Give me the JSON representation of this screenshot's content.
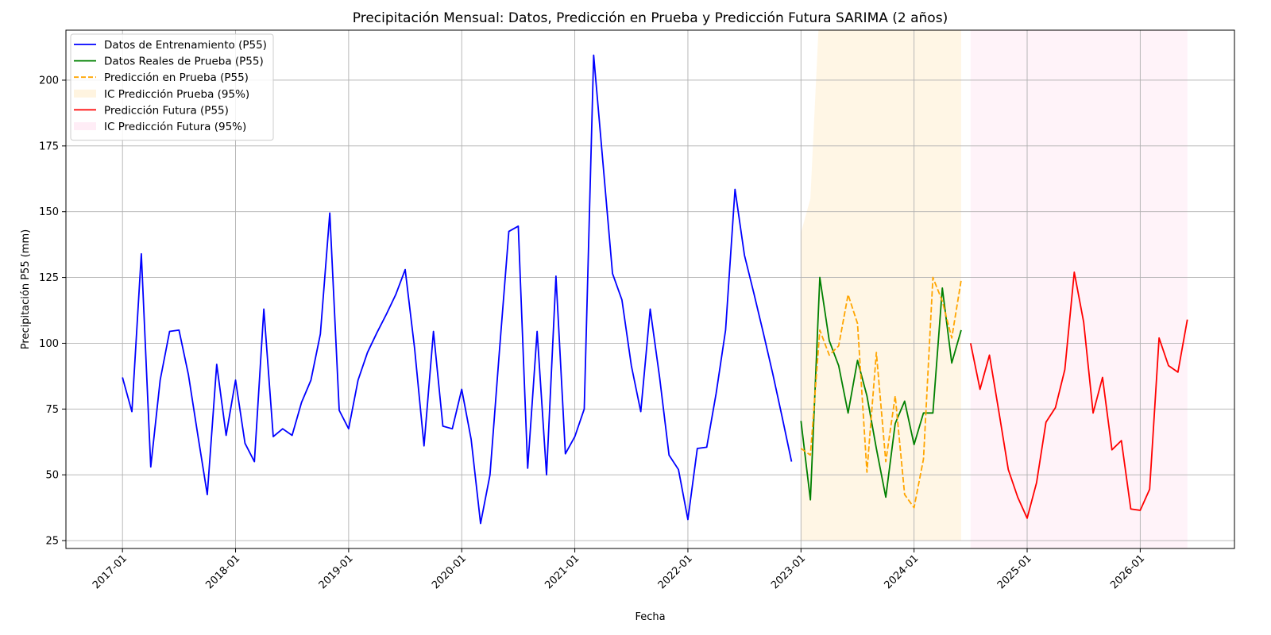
{
  "chart_data": {
    "type": "line",
    "title": "Precipitación Mensual: Datos, Predicción en Prueba y Predicción Futura SARIMA (2 años)",
    "xlabel": "Fecha",
    "ylabel": "Precipitación P55 (mm)",
    "xlim": [
      "2016-07",
      "2026-11"
    ],
    "ylim": [
      22,
      219
    ],
    "x_ticks": [
      "2017-01",
      "2018-01",
      "2019-01",
      "2020-01",
      "2021-01",
      "2022-01",
      "2023-01",
      "2024-01",
      "2025-01",
      "2026-01"
    ],
    "y_ticks": [
      25,
      50,
      75,
      100,
      125,
      150,
      175,
      200
    ],
    "grid": true,
    "legend_position": "upper-left",
    "series": [
      {
        "name": "Datos de Entrenamiento (P55)",
        "color": "#0000ff",
        "style": "solid",
        "start": "2017-01",
        "values": [
          87,
          74,
          134,
          53,
          86,
          104.5,
          105,
          88,
          65,
          42.5,
          92,
          65,
          86,
          62,
          55,
          113,
          64.5,
          67.5,
          65,
          77.5,
          86,
          103.5,
          149.5,
          74.5,
          67.5,
          86,
          96.5,
          104,
          111,
          118.5,
          128,
          98,
          61,
          104.5,
          68.5,
          67.5,
          82.5,
          63.5,
          31.5,
          50,
          97,
          142.5,
          144.5,
          52.5,
          104.5,
          50,
          125.5,
          58,
          64.5,
          75,
          209.5,
          168,
          126.5,
          116.5,
          91.5,
          74,
          113,
          87,
          57.5,
          52,
          33,
          60,
          60.5,
          81,
          105,
          158.5,
          133.5,
          119,
          104,
          88.5,
          72,
          55
        ]
      },
      {
        "name": "Datos Reales de Prueba (P55)",
        "color": "#008000",
        "style": "solid",
        "start": "2023-01",
        "values": [
          70.5,
          40.5,
          125,
          101,
          91.5,
          73.5,
          93.5,
          80,
          60,
          41.5,
          69.5,
          78,
          61.5,
          73.5,
          73.5,
          121,
          92.5,
          105
        ]
      },
      {
        "name": "Predicción en Prueba (P55)",
        "color": "#ffa500",
        "style": "dashed",
        "start": "2023-01",
        "values": [
          60,
          57.5,
          105,
          95.5,
          99,
          118.5,
          107.5,
          51,
          96.5,
          55,
          80,
          42.5,
          37.5,
          56,
          125,
          116,
          102,
          124
        ]
      },
      {
        "name": "IC Predicción Prueba (95%)",
        "type": "band",
        "color": "#ffa500",
        "opacity": 0.1,
        "start": "2023-01",
        "lower": [
          25,
          25,
          25,
          25,
          25,
          25,
          25,
          25,
          25,
          25,
          25,
          25,
          25,
          25,
          25,
          25,
          25,
          25
        ],
        "upper": [
          142,
          155,
          230,
          230,
          230,
          230,
          230,
          230,
          230,
          230,
          230,
          230,
          230,
          230,
          230,
          230,
          230,
          230
        ]
      },
      {
        "name": "Predicción Futura (P55)",
        "color": "#ff0000",
        "style": "solid",
        "start": "2024-07",
        "values": [
          100,
          82.5,
          95.5,
          74,
          52,
          41.5,
          33.5,
          47,
          70,
          75.5,
          90,
          127,
          108,
          73.5,
          87,
          59.5,
          63,
          37,
          36.5,
          44.5,
          102,
          91.5,
          89,
          109
        ]
      },
      {
        "name": "IC Predicción Futura (95%)",
        "type": "band",
        "color": "#ff69b4",
        "opacity": 0.08,
        "start": "2024-07",
        "lower": [
          22,
          22,
          22,
          22,
          22,
          22,
          22,
          22,
          22,
          22,
          22,
          22,
          22,
          22,
          22,
          22,
          22,
          22,
          22,
          22,
          22,
          22,
          22,
          22
        ],
        "upper": [
          219,
          219,
          219,
          219,
          219,
          219,
          219,
          219,
          219,
          219,
          219,
          219,
          219,
          219,
          219,
          219,
          219,
          219,
          219,
          219,
          219,
          219,
          219,
          219
        ]
      }
    ],
    "legend_order": [
      0,
      1,
      2,
      3,
      4,
      5
    ]
  }
}
